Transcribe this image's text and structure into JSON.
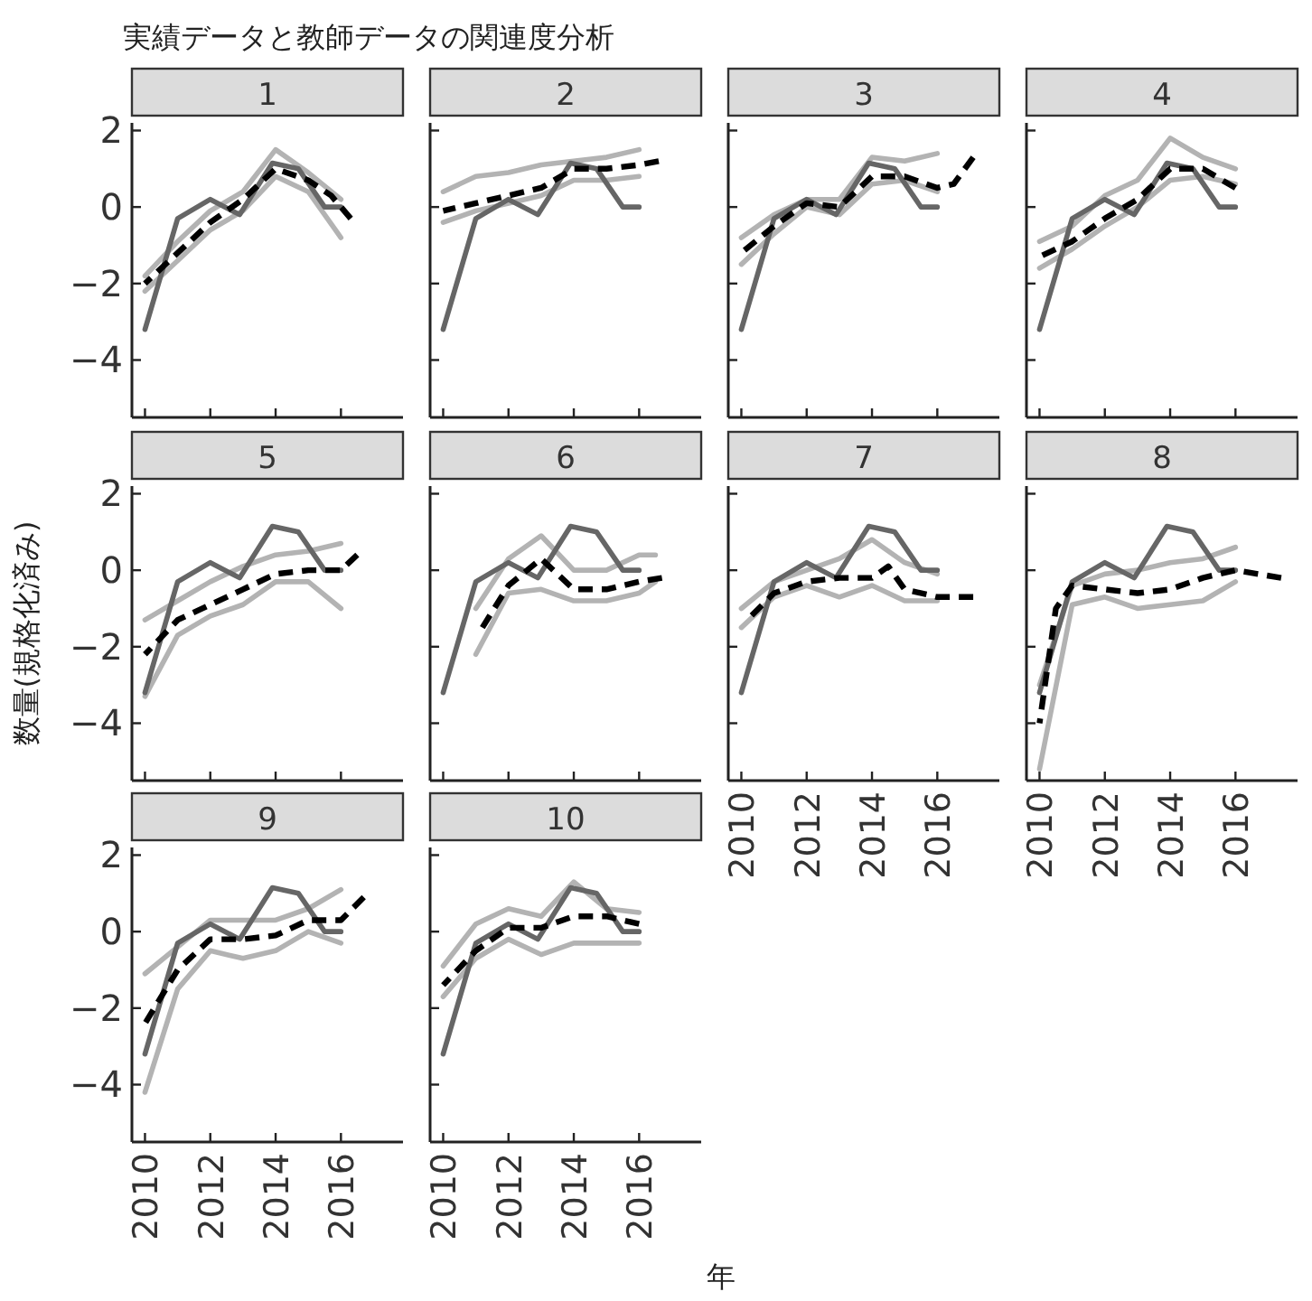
{
  "chart_data": [
    {
      "type": "line",
      "title": "1",
      "annotations": [
        "実績データと教師データの関連度分析"
      ],
      "xlim": [
        2009.6,
        2017.9
      ],
      "ylim": [
        -5.5,
        2.2
      ],
      "xticks": [
        2010,
        2012,
        2014,
        2016
      ],
      "yticks": [
        -4,
        -2,
        0,
        2
      ],
      "tick_labels": "y",
      "series": [
        {
          "color": "#b3b3b3",
          "line_style": "solid",
          "x": [
            2010,
            2011,
            2012,
            2013,
            2014,
            2015,
            2016
          ],
          "values": [
            -1.8,
            -0.9,
            -0.1,
            0.4,
            1.5,
            0.9,
            0.2
          ]
        },
        {
          "color": "#b3b3b3",
          "line_style": "solid",
          "x": [
            2010,
            2011,
            2012,
            2013,
            2014,
            2015,
            2016
          ],
          "values": [
            -2.2,
            -1.4,
            -0.6,
            -0.1,
            0.8,
            0.4,
            -0.8
          ]
        },
        {
          "color": "#666666",
          "line_style": "solid",
          "x": [
            2010,
            2011,
            2012,
            2012.9,
            2013.9,
            2014.7,
            2015.5,
            2016
          ],
          "values": [
            -3.2,
            -0.3,
            0.2,
            -0.2,
            1.15,
            1.0,
            0.0,
            0.0
          ]
        },
        {
          "color": "#000000",
          "line_style": "dashed",
          "x": [
            2010,
            2011,
            2012,
            2013,
            2014,
            2015,
            2015.7,
            2016.3
          ],
          "values": [
            -2.0,
            -1.2,
            -0.4,
            0.2,
            1.0,
            0.7,
            0.3,
            -0.3
          ]
        }
      ]
    },
    {
      "type": "line",
      "title": "2",
      "xlim": [
        2009.6,
        2017.9
      ],
      "ylim": [
        -5.5,
        2.2
      ],
      "xticks": [
        2010,
        2012,
        2014,
        2016
      ],
      "yticks": [
        -4,
        -2,
        0,
        2
      ],
      "tick_labels": false,
      "series": [
        {
          "color": "#b3b3b3",
          "line_style": "solid",
          "x": [
            2010,
            2011,
            2012,
            2013,
            2014,
            2015,
            2016
          ],
          "values": [
            0.4,
            0.8,
            0.9,
            1.1,
            1.2,
            1.3,
            1.5
          ]
        },
        {
          "color": "#b3b3b3",
          "line_style": "solid",
          "x": [
            2010,
            2011,
            2012,
            2013,
            2014,
            2015,
            2016
          ],
          "values": [
            -0.4,
            -0.1,
            0.1,
            0.3,
            0.7,
            0.7,
            0.8
          ]
        },
        {
          "color": "#666666",
          "line_style": "solid",
          "x": [
            2010,
            2011,
            2012,
            2012.9,
            2013.9,
            2014.7,
            2015.5,
            2016
          ],
          "values": [
            -3.2,
            -0.3,
            0.2,
            -0.2,
            1.15,
            1.0,
            0.0,
            0.0
          ]
        },
        {
          "color": "#000000",
          "line_style": "dashed",
          "x": [
            2010,
            2011,
            2012,
            2013,
            2014,
            2015,
            2016,
            2016.6
          ],
          "values": [
            -0.1,
            0.1,
            0.3,
            0.5,
            1.0,
            1.0,
            1.1,
            1.2
          ]
        }
      ]
    },
    {
      "type": "line",
      "title": "3",
      "xlim": [
        2009.6,
        2017.9
      ],
      "ylim": [
        -5.5,
        2.2
      ],
      "xticks": [
        2010,
        2012,
        2014,
        2016
      ],
      "yticks": [
        -4,
        -2,
        0,
        2
      ],
      "tick_labels": false,
      "series": [
        {
          "color": "#b3b3b3",
          "line_style": "solid",
          "x": [
            2010,
            2011,
            2012,
            2013,
            2014,
            2015,
            2016
          ],
          "values": [
            -0.8,
            -0.2,
            0.2,
            0.2,
            1.3,
            1.2,
            1.4
          ]
        },
        {
          "color": "#b3b3b3",
          "line_style": "solid",
          "x": [
            2010,
            2011,
            2012,
            2013,
            2014,
            2015,
            2016
          ],
          "values": [
            -1.5,
            -0.7,
            0.0,
            -0.2,
            0.6,
            0.7,
            0.4
          ]
        },
        {
          "color": "#666666",
          "line_style": "solid",
          "x": [
            2010,
            2011,
            2012,
            2012.9,
            2013.9,
            2014.7,
            2015.5,
            2016
          ],
          "values": [
            -3.2,
            -0.3,
            0.2,
            -0.2,
            1.15,
            1.0,
            0.0,
            0.0
          ]
        },
        {
          "color": "#000000",
          "line_style": "dashed",
          "x": [
            2010,
            2011,
            2012,
            2013,
            2014,
            2015,
            2016,
            2016.5,
            2017.1
          ],
          "values": [
            -1.2,
            -0.5,
            0.1,
            0.0,
            0.8,
            0.8,
            0.5,
            0.6,
            1.3
          ]
        }
      ]
    },
    {
      "type": "line",
      "title": "4",
      "xlim": [
        2009.6,
        2017.9
      ],
      "ylim": [
        -5.5,
        2.2
      ],
      "xticks": [
        2010,
        2012,
        2014,
        2016
      ],
      "yticks": [
        -4,
        -2,
        0,
        2
      ],
      "tick_labels": false,
      "series": [
        {
          "color": "#b3b3b3",
          "line_style": "solid",
          "x": [
            2010,
            2011,
            2012,
            2013,
            2014,
            2015,
            2016
          ],
          "values": [
            -0.9,
            -0.5,
            0.3,
            0.7,
            1.8,
            1.3,
            1.0
          ]
        },
        {
          "color": "#b3b3b3",
          "line_style": "solid",
          "x": [
            2010,
            2011,
            2012,
            2013,
            2014,
            2015,
            2016
          ],
          "values": [
            -1.6,
            -1.1,
            -0.5,
            0.0,
            0.7,
            0.8,
            0.6
          ]
        },
        {
          "color": "#666666",
          "line_style": "solid",
          "x": [
            2010,
            2011,
            2012,
            2012.9,
            2013.9,
            2014.7,
            2015.5,
            2016
          ],
          "values": [
            -3.2,
            -0.3,
            0.2,
            -0.2,
            1.15,
            1.0,
            0.0,
            0.0
          ]
        },
        {
          "color": "#000000",
          "line_style": "dashed",
          "x": [
            2010,
            2011,
            2012,
            2013,
            2014,
            2015,
            2016
          ],
          "values": [
            -1.3,
            -0.9,
            -0.3,
            0.2,
            1.0,
            1.0,
            0.5
          ]
        }
      ]
    },
    {
      "type": "line",
      "title": "5",
      "ylabel": "数量(規格化済み)",
      "xlim": [
        2009.6,
        2017.9
      ],
      "ylim": [
        -5.5,
        2.2
      ],
      "xticks": [
        2010,
        2012,
        2014,
        2016
      ],
      "yticks": [
        -4,
        -2,
        0,
        2
      ],
      "tick_labels": "y",
      "series": [
        {
          "color": "#b3b3b3",
          "line_style": "solid",
          "x": [
            2010,
            2011,
            2012,
            2013,
            2014,
            2015,
            2016
          ],
          "values": [
            -1.3,
            -0.8,
            -0.3,
            0.1,
            0.4,
            0.5,
            0.7
          ]
        },
        {
          "color": "#b3b3b3",
          "line_style": "solid",
          "x": [
            2010,
            2011,
            2012,
            2013,
            2014,
            2015,
            2016
          ],
          "values": [
            -3.3,
            -1.7,
            -1.2,
            -0.9,
            -0.3,
            -0.3,
            -1.0
          ]
        },
        {
          "color": "#666666",
          "line_style": "solid",
          "x": [
            2010,
            2011,
            2012,
            2012.9,
            2013.9,
            2014.7,
            2015.5,
            2016
          ],
          "values": [
            -3.2,
            -0.3,
            0.2,
            -0.2,
            1.15,
            1.0,
            0.0,
            0.0
          ]
        },
        {
          "color": "#000000",
          "line_style": "dashed",
          "x": [
            2010,
            2011,
            2012,
            2013,
            2014,
            2015,
            2016,
            2016.5
          ],
          "values": [
            -2.2,
            -1.3,
            -0.9,
            -0.5,
            -0.1,
            0.0,
            0.0,
            0.4
          ]
        }
      ]
    },
    {
      "type": "line",
      "title": "6",
      "xlim": [
        2009.6,
        2017.9
      ],
      "ylim": [
        -5.5,
        2.2
      ],
      "xticks": [
        2010,
        2012,
        2014,
        2016
      ],
      "yticks": [
        -4,
        -2,
        0,
        2
      ],
      "tick_labels": false,
      "series": [
        {
          "color": "#b3b3b3",
          "line_style": "solid",
          "x": [
            2011,
            2012,
            2013,
            2014,
            2015,
            2016,
            2016.5
          ],
          "values": [
            -1.0,
            0.3,
            0.9,
            0.0,
            0.0,
            0.4,
            0.4
          ]
        },
        {
          "color": "#b3b3b3",
          "line_style": "solid",
          "x": [
            2011,
            2012,
            2013,
            2014,
            2015,
            2016,
            2016.5
          ],
          "values": [
            -2.2,
            -0.6,
            -0.5,
            -0.8,
            -0.8,
            -0.6,
            -0.3
          ]
        },
        {
          "color": "#666666",
          "line_style": "solid",
          "x": [
            2010,
            2011,
            2012,
            2012.9,
            2013.9,
            2014.7,
            2015.5,
            2016
          ],
          "values": [
            -3.2,
            -0.3,
            0.2,
            -0.2,
            1.15,
            1.0,
            0.0,
            0.0
          ]
        },
        {
          "color": "#000000",
          "line_style": "dashed",
          "x": [
            2011.2,
            2012,
            2013,
            2014,
            2015,
            2016,
            2016.7
          ],
          "values": [
            -1.5,
            -0.4,
            0.3,
            -0.5,
            -0.5,
            -0.3,
            -0.2
          ]
        }
      ]
    },
    {
      "type": "line",
      "title": "7",
      "xlim": [
        2009.6,
        2017.9
      ],
      "ylim": [
        -5.5,
        2.2
      ],
      "xticks": [
        2010,
        2012,
        2014,
        2016
      ],
      "yticks": [
        -4,
        -2,
        0,
        2
      ],
      "tick_labels": "x",
      "series": [
        {
          "color": "#b3b3b3",
          "line_style": "solid",
          "x": [
            2010,
            2011,
            2012,
            2013,
            2014,
            2015,
            2016
          ],
          "values": [
            -1.0,
            -0.3,
            0.0,
            0.3,
            0.8,
            0.2,
            -0.1
          ]
        },
        {
          "color": "#b3b3b3",
          "line_style": "solid",
          "x": [
            2010,
            2011,
            2012,
            2013,
            2014,
            2015,
            2016
          ],
          "values": [
            -1.5,
            -0.7,
            -0.4,
            -0.7,
            -0.4,
            -0.8,
            -0.8
          ]
        },
        {
          "color": "#666666",
          "line_style": "solid",
          "x": [
            2010,
            2011,
            2012,
            2012.9,
            2013.9,
            2014.7,
            2015.5,
            2016
          ],
          "values": [
            -3.2,
            -0.3,
            0.2,
            -0.2,
            1.15,
            1.0,
            0.0,
            0.0
          ]
        },
        {
          "color": "#000000",
          "line_style": "dashed",
          "x": [
            2010.3,
            2011,
            2012,
            2013,
            2014,
            2014.5,
            2015,
            2016,
            2017.1
          ],
          "values": [
            -1.2,
            -0.6,
            -0.3,
            -0.2,
            -0.2,
            0.1,
            -0.5,
            -0.7,
            -0.7
          ]
        }
      ]
    },
    {
      "type": "line",
      "title": "8",
      "xlim": [
        2009.6,
        2017.9
      ],
      "ylim": [
        -5.5,
        2.2
      ],
      "xticks": [
        2010,
        2012,
        2014,
        2016
      ],
      "yticks": [
        -4,
        -2,
        0,
        2
      ],
      "tick_labels": "x",
      "series": [
        {
          "color": "#b3b3b3",
          "line_style": "solid",
          "x": [
            2010,
            2011,
            2012,
            2013,
            2014,
            2015,
            2016
          ],
          "values": [
            -3.0,
            -0.4,
            -0.1,
            0.0,
            0.2,
            0.3,
            0.6
          ]
        },
        {
          "color": "#b3b3b3",
          "line_style": "solid",
          "x": [
            2010,
            2011,
            2012,
            2013,
            2014,
            2015,
            2016
          ],
          "values": [
            -5.2,
            -0.9,
            -0.7,
            -1.0,
            -0.9,
            -0.8,
            -0.3
          ]
        },
        {
          "color": "#666666",
          "line_style": "solid",
          "x": [
            2010,
            2011,
            2012,
            2012.9,
            2013.9,
            2014.7,
            2015.5,
            2016
          ],
          "values": [
            -3.2,
            -0.3,
            0.2,
            -0.2,
            1.15,
            1.0,
            0.0,
            0.0
          ]
        },
        {
          "color": "#000000",
          "line_style": "dashed",
          "x": [
            2010,
            2010.5,
            2011,
            2012,
            2013,
            2014,
            2015,
            2016,
            2017.4
          ],
          "values": [
            -4.0,
            -1.0,
            -0.4,
            -0.5,
            -0.6,
            -0.5,
            -0.2,
            0.0,
            -0.2
          ]
        }
      ]
    },
    {
      "type": "line",
      "title": "9",
      "xlim": [
        2009.6,
        2017.9
      ],
      "ylim": [
        -5.5,
        2.2
      ],
      "xticks": [
        2010,
        2012,
        2014,
        2016
      ],
      "yticks": [
        -4,
        -2,
        0,
        2
      ],
      "series": [
        {
          "color": "#b3b3b3",
          "line_style": "solid",
          "x": [
            2010,
            2011,
            2012,
            2013,
            2014,
            2015,
            2016
          ],
          "values": [
            -1.1,
            -0.4,
            0.3,
            0.3,
            0.3,
            0.6,
            1.1
          ]
        },
        {
          "color": "#b3b3b3",
          "line_style": "solid",
          "x": [
            2010,
            2011,
            2012,
            2013,
            2014,
            2015,
            2016
          ],
          "values": [
            -4.2,
            -1.5,
            -0.5,
            -0.7,
            -0.5,
            0.0,
            -0.3
          ]
        },
        {
          "color": "#666666",
          "line_style": "solid",
          "x": [
            2010,
            2011,
            2012,
            2012.9,
            2013.9,
            2014.7,
            2015.5,
            2016
          ],
          "values": [
            -3.2,
            -0.3,
            0.2,
            -0.2,
            1.15,
            1.0,
            0.0,
            0.0
          ]
        },
        {
          "color": "#000000",
          "line_style": "dashed",
          "x": [
            2010,
            2011,
            2012,
            2013,
            2014,
            2015,
            2016,
            2016.7
          ],
          "values": [
            -2.4,
            -1.0,
            -0.2,
            -0.2,
            -0.1,
            0.3,
            0.3,
            0.9
          ]
        }
      ]
    },
    {
      "type": "line",
      "title": "10",
      "xlabel": "年",
      "xlim": [
        2009.6,
        2017.9
      ],
      "ylim": [
        -5.5,
        2.2
      ],
      "xticks": [
        2010,
        2012,
        2014,
        2016
      ],
      "yticks": [
        -4,
        -2,
        0,
        2
      ],
      "tick_labels": "x",
      "series": [
        {
          "color": "#b3b3b3",
          "line_style": "solid",
          "x": [
            2010,
            2011,
            2012,
            2013,
            2014,
            2015,
            2016
          ],
          "values": [
            -0.9,
            0.2,
            0.6,
            0.4,
            1.3,
            0.6,
            0.5
          ]
        },
        {
          "color": "#b3b3b3",
          "line_style": "solid",
          "x": [
            2010,
            2011,
            2012,
            2013,
            2014,
            2015,
            2016
          ],
          "values": [
            -1.7,
            -0.7,
            -0.2,
            -0.6,
            -0.3,
            -0.3,
            -0.3
          ]
        },
        {
          "color": "#666666",
          "line_style": "solid",
          "x": [
            2010,
            2011,
            2012,
            2012.9,
            2013.9,
            2014.7,
            2015.5,
            2016
          ],
          "values": [
            -3.2,
            -0.3,
            0.2,
            -0.2,
            1.15,
            1.0,
            0.0,
            0.0
          ]
        },
        {
          "color": "#000000",
          "line_style": "dashed",
          "x": [
            2010,
            2011,
            2012,
            2013,
            2014,
            2015,
            2016
          ],
          "values": [
            -1.4,
            -0.5,
            0.1,
            0.1,
            0.4,
            0.4,
            0.2
          ]
        }
      ]
    }
  ]
}
